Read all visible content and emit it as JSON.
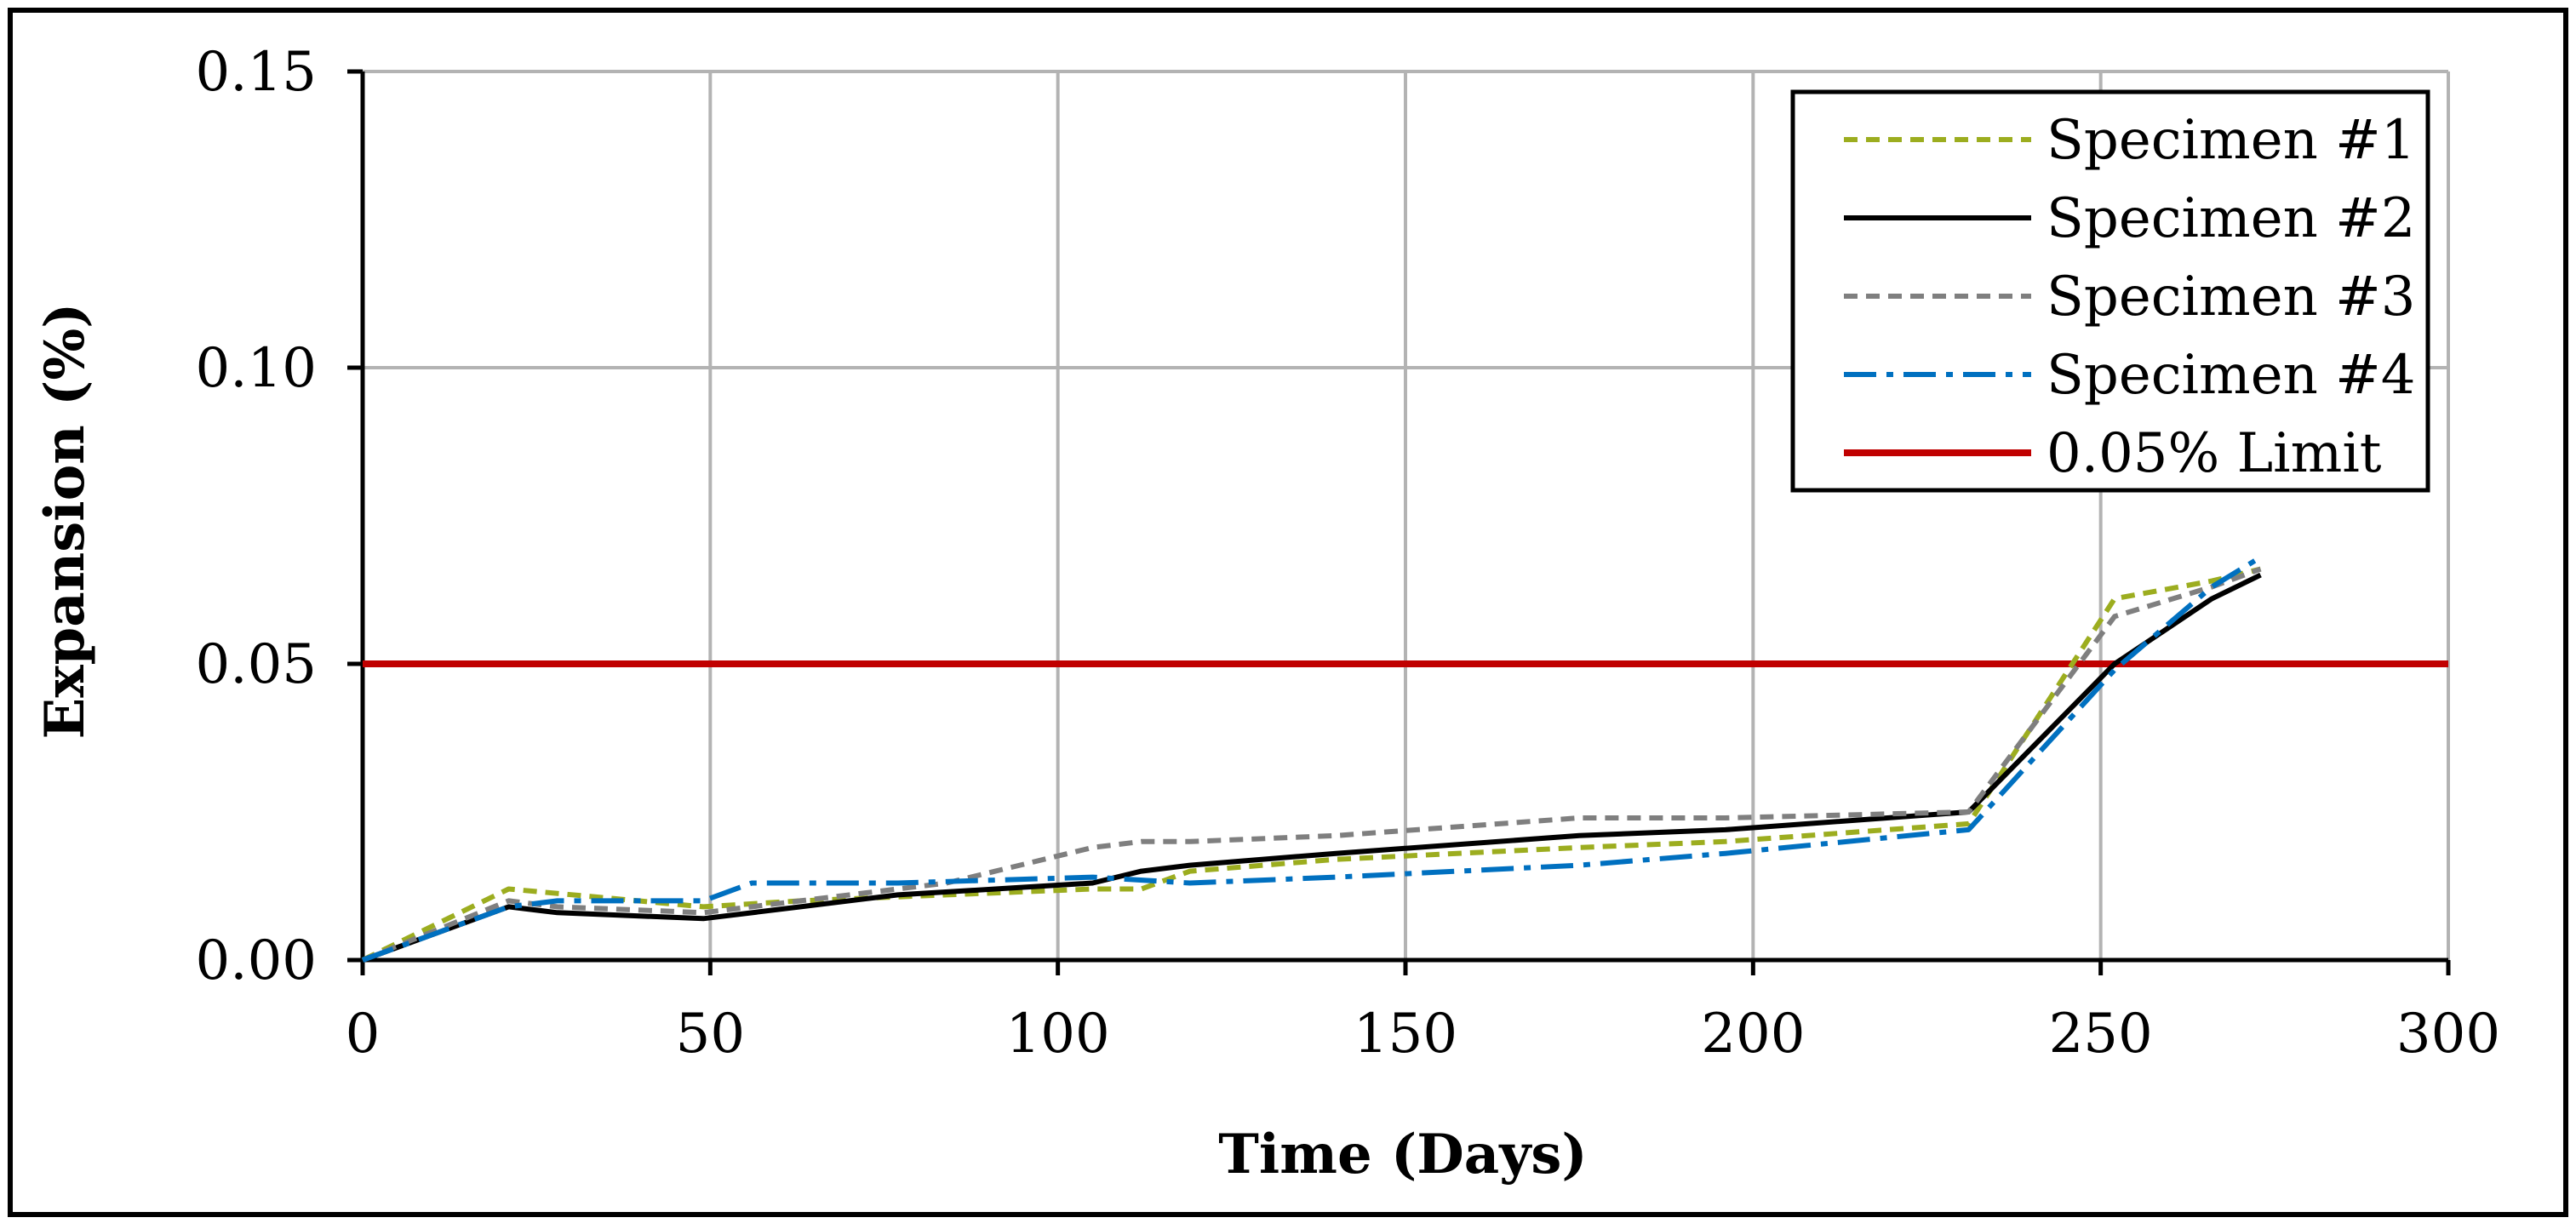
{
  "chart_data": {
    "type": "line",
    "title": "",
    "xlabel": "Time (Days)",
    "ylabel": "Expansion (%)",
    "xlim": [
      0,
      300
    ],
    "ylim": [
      0,
      0.15
    ],
    "x_ticks": [
      0,
      50,
      100,
      150,
      200,
      250,
      300
    ],
    "x_tick_labels": [
      "0",
      "50",
      "100",
      "150",
      "200",
      "250",
      "300"
    ],
    "y_ticks": [
      0,
      0.05,
      0.1,
      0.15
    ],
    "y_tick_labels": [
      "0.00",
      "0.05",
      "0.10",
      "0.15"
    ],
    "grid": true,
    "legend_position": "top-right",
    "series": [
      {
        "name": "Specimen #1",
        "color": "#9cad1f",
        "dash": "dash",
        "points": [
          [
            0,
            0
          ],
          [
            21,
            0.012
          ],
          [
            49,
            0.009
          ],
          [
            63,
            0.01
          ],
          [
            84,
            0.011
          ],
          [
            105,
            0.012
          ],
          [
            112,
            0.012
          ],
          [
            119,
            0.015
          ],
          [
            140,
            0.017
          ],
          [
            175,
            0.019
          ],
          [
            196,
            0.02
          ],
          [
            231,
            0.023
          ],
          [
            252,
            0.061
          ],
          [
            266,
            0.064
          ],
          [
            273,
            0.066
          ]
        ]
      },
      {
        "name": "Specimen #2",
        "color": "#000000",
        "dash": "solid",
        "points": [
          [
            0,
            0
          ],
          [
            21,
            0.009
          ],
          [
            28,
            0.008
          ],
          [
            49,
            0.007
          ],
          [
            63,
            0.009
          ],
          [
            77,
            0.011
          ],
          [
            91,
            0.012
          ],
          [
            105,
            0.013
          ],
          [
            112,
            0.015
          ],
          [
            119,
            0.016
          ],
          [
            140,
            0.018
          ],
          [
            175,
            0.021
          ],
          [
            196,
            0.022
          ],
          [
            231,
            0.025
          ],
          [
            252,
            0.05
          ],
          [
            266,
            0.061
          ],
          [
            273,
            0.065
          ]
        ]
      },
      {
        "name": "Specimen #3",
        "color": "#7f7f7f",
        "dash": "dash",
        "points": [
          [
            0,
            0
          ],
          [
            21,
            0.01
          ],
          [
            28,
            0.009
          ],
          [
            49,
            0.008
          ],
          [
            63,
            0.01
          ],
          [
            84,
            0.013
          ],
          [
            91,
            0.015
          ],
          [
            105,
            0.019
          ],
          [
            112,
            0.02
          ],
          [
            119,
            0.02
          ],
          [
            140,
            0.021
          ],
          [
            175,
            0.024
          ],
          [
            196,
            0.024
          ],
          [
            231,
            0.025
          ],
          [
            252,
            0.058
          ],
          [
            266,
            0.063
          ],
          [
            273,
            0.066
          ]
        ]
      },
      {
        "name": "Specimen #4",
        "color": "#0070c0",
        "dash": "dashdot",
        "points": [
          [
            0,
            0
          ],
          [
            21,
            0.009
          ],
          [
            28,
            0.01
          ],
          [
            49,
            0.01
          ],
          [
            56,
            0.013
          ],
          [
            77,
            0.013
          ],
          [
            105,
            0.014
          ],
          [
            119,
            0.013
          ],
          [
            140,
            0.014
          ],
          [
            175,
            0.016
          ],
          [
            196,
            0.018
          ],
          [
            231,
            0.022
          ],
          [
            252,
            0.049
          ],
          [
            266,
            0.063
          ],
          [
            273,
            0.068
          ]
        ]
      },
      {
        "name": "0.05% Limit",
        "color": "#c00000",
        "dash": "solid",
        "points": [
          [
            0,
            0.05
          ],
          [
            300,
            0.05
          ]
        ]
      }
    ]
  }
}
